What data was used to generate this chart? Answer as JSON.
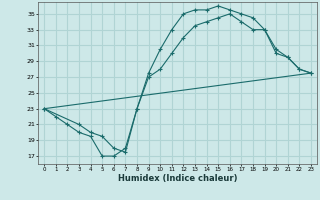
{
  "xlabel": "Humidex (Indice chaleur)",
  "background_color": "#cde8e8",
  "grid_color": "#b0d4d4",
  "line_color": "#1a6b6b",
  "xlim": [
    -0.5,
    23.5
  ],
  "ylim": [
    16,
    36.5
  ],
  "yticks": [
    17,
    19,
    21,
    23,
    25,
    27,
    29,
    31,
    33,
    35
  ],
  "xticks": [
    0,
    1,
    2,
    3,
    4,
    5,
    6,
    7,
    8,
    9,
    10,
    11,
    12,
    13,
    14,
    15,
    16,
    17,
    18,
    19,
    20,
    21,
    22,
    23
  ],
  "line1_x": [
    0,
    1,
    2,
    3,
    4,
    5,
    6,
    7,
    8,
    9,
    10,
    11,
    12,
    13,
    14,
    15,
    16,
    17,
    18,
    19,
    20,
    21,
    22,
    23
  ],
  "line1_y": [
    23.0,
    22.0,
    21.0,
    20.0,
    19.5,
    17.0,
    17.0,
    18.0,
    23.0,
    27.5,
    30.5,
    33.0,
    35.0,
    35.5,
    35.5,
    36.0,
    35.5,
    35.0,
    34.5,
    33.0,
    30.5,
    29.5,
    28.0,
    27.5
  ],
  "line2_x": [
    0,
    3,
    4,
    5,
    6,
    7,
    8,
    9,
    10,
    11,
    12,
    13,
    14,
    15,
    16,
    17,
    18,
    19,
    20,
    21,
    22,
    23
  ],
  "line2_y": [
    23.0,
    21.0,
    20.0,
    19.5,
    18.0,
    17.5,
    23.0,
    27.0,
    28.0,
    30.0,
    32.0,
    33.5,
    34.0,
    34.5,
    35.0,
    34.0,
    33.0,
    33.0,
    30.0,
    29.5,
    28.0,
    27.5
  ],
  "line3_x": [
    0,
    23
  ],
  "line3_y": [
    23.0,
    27.5
  ]
}
